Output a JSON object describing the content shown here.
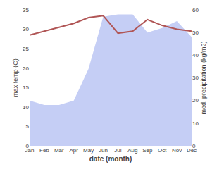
{
  "chart_data": {
    "type": "line",
    "categories": [
      "Jan",
      "Feb",
      "Mar",
      "Apr",
      "May",
      "Jun",
      "Jul",
      "Aug",
      "Sep",
      "Oct",
      "Nov",
      "Dec"
    ],
    "xlabel": "date (month)",
    "ylabel": "max temp (C)",
    "y2label": "med. precipitation (kg/m2)",
    "series": [
      {
        "type": "area",
        "axis": "y2",
        "color": "#c5cef5",
        "values": [
          20,
          18,
          18,
          20,
          34,
          57,
          58,
          58,
          50,
          52,
          55,
          48
        ]
      },
      {
        "type": "line",
        "color": "#b05555",
        "values": [
          28.5,
          29.5,
          30.5,
          31.5,
          33.0,
          33.5,
          29.0,
          29.5,
          32.5,
          31.0,
          30.0,
          29.5
        ]
      }
    ],
    "ylim": [
      0,
      35
    ],
    "yticks": [
      0,
      5,
      10,
      15,
      20,
      25,
      30,
      35
    ],
    "y2lim": [
      0,
      60
    ],
    "y2ticks": [
      0,
      10,
      20,
      30,
      40,
      50,
      60
    ],
    "grid": false
  }
}
